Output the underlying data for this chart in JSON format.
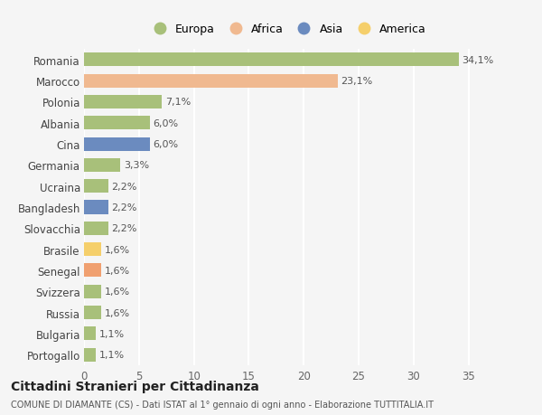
{
  "countries": [
    "Romania",
    "Marocco",
    "Polonia",
    "Albania",
    "Cina",
    "Germania",
    "Ucraina",
    "Bangladesh",
    "Slovacchia",
    "Brasile",
    "Senegal",
    "Svizzera",
    "Russia",
    "Bulgaria",
    "Portogallo"
  ],
  "values": [
    34.1,
    23.1,
    7.1,
    6.0,
    6.0,
    3.3,
    2.2,
    2.2,
    2.2,
    1.6,
    1.6,
    1.6,
    1.6,
    1.1,
    1.1
  ],
  "labels": [
    "34,1%",
    "23,1%",
    "7,1%",
    "6,0%",
    "6,0%",
    "3,3%",
    "2,2%",
    "2,2%",
    "2,2%",
    "1,6%",
    "1,6%",
    "1,6%",
    "1,6%",
    "1,1%",
    "1,1%"
  ],
  "colors": [
    "#a8c07a",
    "#f0b990",
    "#a8c07a",
    "#a8c07a",
    "#6b8bbf",
    "#a8c07a",
    "#a8c07a",
    "#6b8bbf",
    "#a8c07a",
    "#f5cf6b",
    "#f0a070",
    "#a8c07a",
    "#a8c07a",
    "#a8c07a",
    "#a8c07a"
  ],
  "legend_labels": [
    "Europa",
    "Africa",
    "Asia",
    "America"
  ],
  "legend_colors": [
    "#a8c07a",
    "#f0b990",
    "#6b8bbf",
    "#f5cf6b"
  ],
  "xlim": [
    0,
    37
  ],
  "xticks": [
    0,
    5,
    10,
    15,
    20,
    25,
    30,
    35
  ],
  "title": "Cittadini Stranieri per Cittadinanza",
  "subtitle": "COMUNE DI DIAMANTE (CS) - Dati ISTAT al 1° gennaio di ogni anno - Elaborazione TUTTITALIA.IT",
  "bg_color": "#f5f5f5",
  "grid_color": "#ffffff",
  "bar_height": 0.65,
  "label_fontsize": 8.0,
  "ytick_fontsize": 8.5,
  "xtick_fontsize": 8.5
}
